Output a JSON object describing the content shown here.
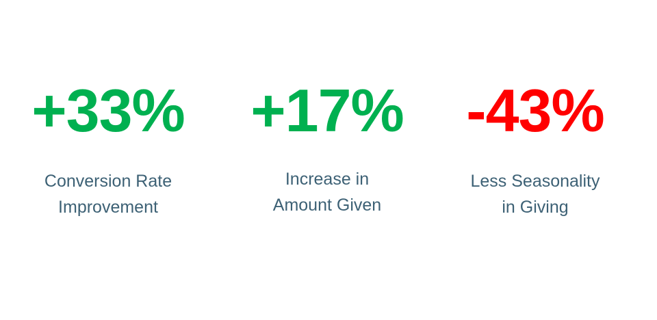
{
  "stats": [
    {
      "value": "+33%",
      "color": "#00b050",
      "label": [
        "Conversion Rate",
        "Improvement"
      ]
    },
    {
      "value": "+17%",
      "color": "#00b050",
      "label": [
        "Increase in",
        "Amount Given"
      ]
    },
    {
      "value": "-43%",
      "color": "#ff0000",
      "label": [
        "Less Seasonality",
        "in Giving"
      ]
    }
  ]
}
